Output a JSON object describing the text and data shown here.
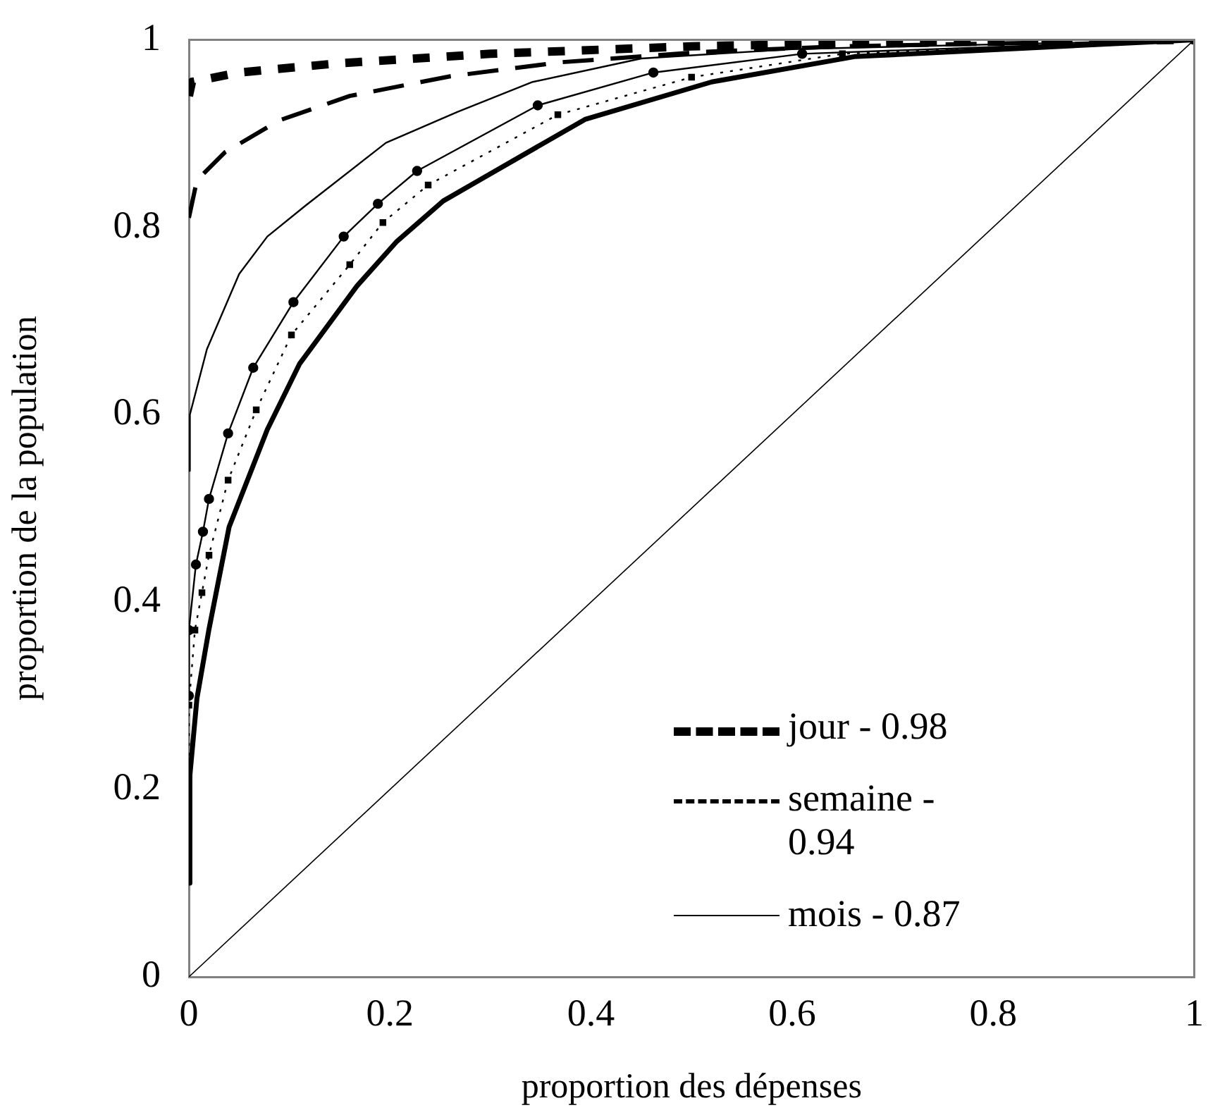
{
  "chart_data": {
    "type": "line",
    "xlabel": "proportion des dépenses",
    "ylabel": "proportion de la population",
    "xlim": [
      0,
      1
    ],
    "ylim": [
      0,
      1
    ],
    "xticks": [
      0,
      0.2,
      0.4,
      0.6,
      0.8,
      1
    ],
    "yticks": [
      0,
      0.2,
      0.4,
      0.6,
      0.8,
      1
    ],
    "grid": false,
    "legend": "right",
    "series": [
      {
        "name": "jour - 0.98",
        "color": "#000000",
        "line_style": "dashed",
        "x": [
          0,
          0.003,
          0.05,
          0.15,
          0.3,
          0.5,
          0.7,
          1
        ],
        "values": [
          0.94,
          0.955,
          0.965,
          0.975,
          0.985,
          0.993,
          0.997,
          1
        ]
      },
      {
        "name": "semaine - 0.94",
        "color": "#000000",
        "line_style": "dashed",
        "x": [
          0,
          0.008,
          0.036,
          0.09,
          0.16,
          0.26,
          0.37,
          0.51,
          0.65,
          1
        ],
        "values": [
          0.81,
          0.85,
          0.88,
          0.914,
          0.94,
          0.961,
          0.976,
          0.987,
          0.993,
          1
        ]
      },
      {
        "name": "mois - 0.87",
        "color": "#000000",
        "line_style": "solid",
        "x": [
          0,
          0.001,
          0.018,
          0.05,
          0.078,
          0.116,
          0.196,
          0.267,
          0.342,
          0.45,
          0.6,
          1
        ],
        "values": [
          0.54,
          0.6,
          0.67,
          0.75,
          0.79,
          0.823,
          0.89,
          0.923,
          0.955,
          0.98,
          0.99,
          1
        ]
      },
      {
        "color": "#000000",
        "line_style": "solid",
        "marker": "circle",
        "x": [
          0,
          0,
          0.007,
          0.014,
          0.02,
          0.039,
          0.064,
          0.104,
          0.154,
          0.188,
          0.227,
          0.347,
          0.462,
          0.61,
          1
        ],
        "values": [
          0.3,
          0.37,
          0.44,
          0.475,
          0.51,
          0.58,
          0.65,
          0.72,
          0.79,
          0.825,
          0.86,
          0.93,
          0.965,
          0.985,
          1
        ]
      },
      {
        "color": "#000000",
        "line_style": "dotted",
        "marker": "square",
        "x": [
          0,
          0,
          0.006,
          0.013,
          0.02,
          0.039,
          0.067,
          0.102,
          0.16,
          0.193,
          0.238,
          0.367,
          0.5,
          0.65,
          1
        ],
        "values": [
          0.215,
          0.29,
          0.37,
          0.41,
          0.45,
          0.53,
          0.605,
          0.685,
          0.76,
          0.805,
          0.845,
          0.92,
          0.96,
          0.985,
          1
        ]
      },
      {
        "color": "#000000",
        "line_style": "solid",
        "x": [
          0,
          0.001,
          0.008,
          0.02,
          0.04,
          0.078,
          0.11,
          0.167,
          0.207,
          0.253,
          0.394,
          0.52,
          0.662,
          1
        ],
        "values": [
          0.1,
          0.215,
          0.297,
          0.371,
          0.48,
          0.584,
          0.654,
          0.737,
          0.785,
          0.828,
          0.915,
          0.955,
          0.982,
          1
        ]
      },
      {
        "color": "#000000",
        "line_style": "solid",
        "x": [
          0,
          1
        ],
        "values": [
          0,
          1
        ]
      }
    ]
  }
}
